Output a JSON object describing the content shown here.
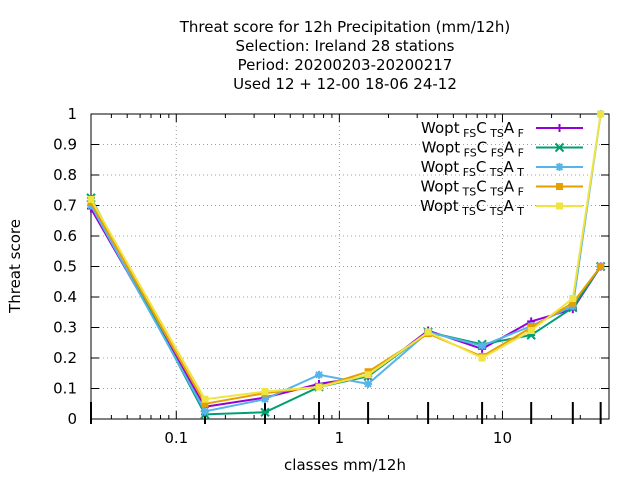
{
  "chart_data": {
    "type": "line",
    "title_lines": [
      "Threat score  for 12h Precipitation (mm/12h)",
      "Selection: Ireland      28 stations",
      "Period: 20200203-20200217",
      "Used  12 + 12-00 18-06 24-12"
    ],
    "xlabel": "classes mm/12h",
    "ylabel": "Threat score",
    "xscale": "log",
    "xlim": [
      0.03,
      45
    ],
    "ylim": [
      0,
      1
    ],
    "x_ticks": [
      0.1,
      1,
      10
    ],
    "x_tick_labels": [
      "0.1",
      "1",
      "10"
    ],
    "y_ticks": [
      0,
      0.1,
      0.2,
      0.3,
      0.4,
      0.5,
      0.6,
      0.7,
      0.8,
      0.9,
      1
    ],
    "y_tick_labels": [
      "0",
      "0.1",
      "0.2",
      "0.3",
      "0.4",
      "0.5",
      "0.6",
      "0.7",
      "0.8",
      "0.9",
      "1"
    ],
    "grid": true,
    "legend_position": "top-right",
    "x": [
      0.03,
      0.15,
      0.35,
      0.75,
      1.5,
      3.5,
      7.5,
      15,
      27,
      40
    ],
    "series": [
      {
        "name_parts": [
          "Wopt",
          "FS",
          "C",
          "TS",
          "A",
          "F"
        ],
        "color": "#9400d3",
        "marker": "plus",
        "values": [
          0.69,
          0.04,
          0.07,
          0.115,
          0.14,
          0.29,
          0.23,
          0.32,
          0.36,
          0.5
        ]
      },
      {
        "name_parts": [
          "Wopt",
          "FS",
          "C",
          "FS",
          "A",
          "F"
        ],
        "color": "#009e73",
        "marker": "cross",
        "values": [
          0.725,
          0.015,
          0.022,
          0.105,
          0.14,
          0.285,
          0.245,
          0.275,
          0.365,
          0.5
        ]
      },
      {
        "name_parts": [
          "Wopt",
          "FS",
          "C",
          "TS",
          "A",
          "T"
        ],
        "color": "#56b4e9",
        "marker": "star",
        "values": [
          0.7,
          0.025,
          0.065,
          0.145,
          0.115,
          0.285,
          0.24,
          0.305,
          0.37,
          1.0
        ]
      },
      {
        "name_parts": [
          "Wopt",
          "TS",
          "C",
          "TS",
          "A",
          "F"
        ],
        "color": "#e69f00",
        "marker": "box",
        "values": [
          0.71,
          0.05,
          0.085,
          0.105,
          0.155,
          0.28,
          0.205,
          0.3,
          0.38,
          0.5
        ]
      },
      {
        "name_parts": [
          "Wopt",
          "TS",
          "C",
          "TS",
          "A",
          "T"
        ],
        "color": "#f0e442",
        "marker": "box",
        "values": [
          0.72,
          0.065,
          0.09,
          0.105,
          0.145,
          0.285,
          0.2,
          0.29,
          0.395,
          1.0
        ]
      }
    ]
  }
}
